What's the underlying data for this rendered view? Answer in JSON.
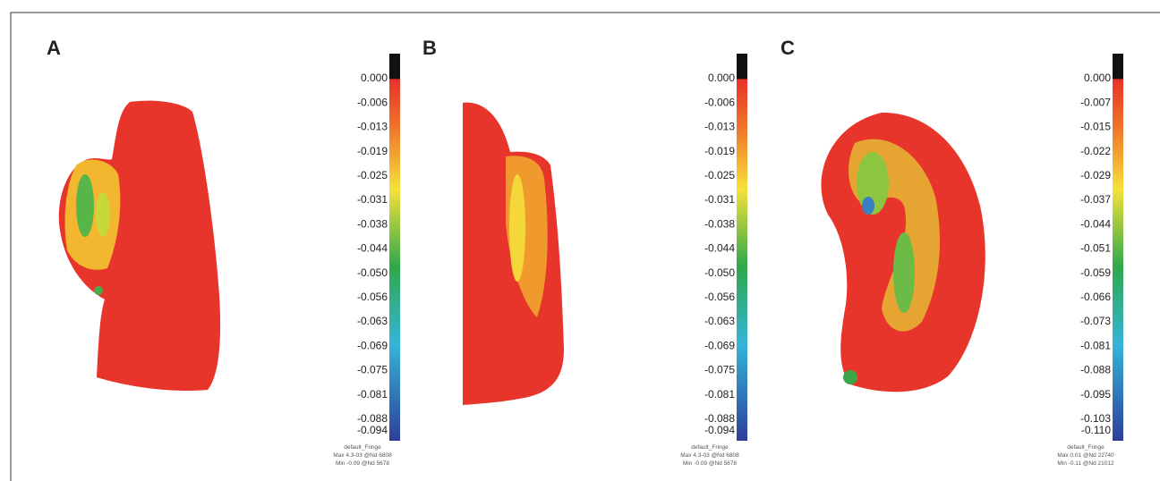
{
  "panels": [
    {
      "label": "A",
      "scale": [
        "0.000",
        "-0.006",
        "-0.013",
        "-0.019",
        "-0.025",
        "-0.031",
        "-0.038",
        "-0.044",
        "-0.050",
        "-0.056",
        "-0.063",
        "-0.069",
        "-0.075",
        "-0.081",
        "-0.088",
        "-0.094"
      ],
      "footer": [
        "default_Fringe",
        "Max 4.3-03 @Nd 6808",
        "Min -0.09 @Nd 5678"
      ]
    },
    {
      "label": "B",
      "scale": [
        "0.000",
        "-0.006",
        "-0.013",
        "-0.019",
        "-0.025",
        "-0.031",
        "-0.038",
        "-0.044",
        "-0.050",
        "-0.056",
        "-0.063",
        "-0.069",
        "-0.075",
        "-0.081",
        "-0.088",
        "-0.094"
      ],
      "footer": [
        "default_Fringe",
        "Max 4.3-03 @Nd 6808",
        "Min -0.09 @Nd 5678"
      ]
    },
    {
      "label": "C",
      "scale": [
        "0.000",
        "-0.007",
        "-0.015",
        "-0.022",
        "-0.029",
        "-0.037",
        "-0.044",
        "-0.051",
        "-0.059",
        "-0.066",
        "-0.073",
        "-0.081",
        "-0.088",
        "-0.095",
        "-0.103",
        "-0.110"
      ],
      "footer": [
        "default_Fringe",
        "Max 0.01 @Nd 22740",
        "Min -0.11 @Nd 21012"
      ]
    }
  ]
}
